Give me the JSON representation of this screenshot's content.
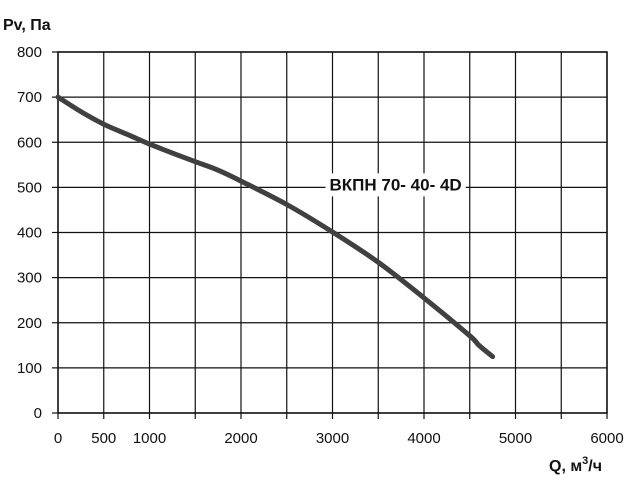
{
  "chart_data": {
    "type": "line",
    "ylabel": "Pv, Па",
    "xlabel_main": "Q, м",
    "xlabel_sup": "3",
    "xlabel_tail": "/ч",
    "xlim": [
      0,
      6000
    ],
    "ylim": [
      0,
      800
    ],
    "x_ticks": [
      0,
      500,
      1000,
      1500,
      2000,
      2500,
      3000,
      3500,
      4000,
      4500,
      5000,
      5500,
      6000
    ],
    "x_tick_labels": [
      "0",
      "500",
      "1000",
      "2000",
      "3000",
      "4000",
      "5000",
      "6000"
    ],
    "x_tick_label_values": [
      0,
      500,
      1000,
      2000,
      3000,
      4000,
      5000,
      6000
    ],
    "y_ticks": [
      0,
      100,
      200,
      300,
      400,
      500,
      600,
      700,
      800
    ],
    "y_tick_labels": [
      "0",
      "100",
      "200",
      "300",
      "400",
      "500",
      "600",
      "700",
      "800"
    ],
    "grid": true,
    "line_color": "#404040",
    "series": [
      {
        "name": "ВКПН 70- 40- 4D",
        "x": [
          0,
          250,
          500,
          750,
          1000,
          1250,
          1500,
          1750,
          2000,
          2500,
          3000,
          3500,
          4000,
          4500,
          4600,
          4750
        ],
        "y": [
          700,
          668,
          640,
          618,
          596,
          576,
          557,
          538,
          514,
          462,
          401,
          334,
          255,
          171,
          150,
          125
        ]
      }
    ],
    "annotation": {
      "text": "ВКПН 70- 40- 4D",
      "x": 3000,
      "y": 500
    }
  }
}
